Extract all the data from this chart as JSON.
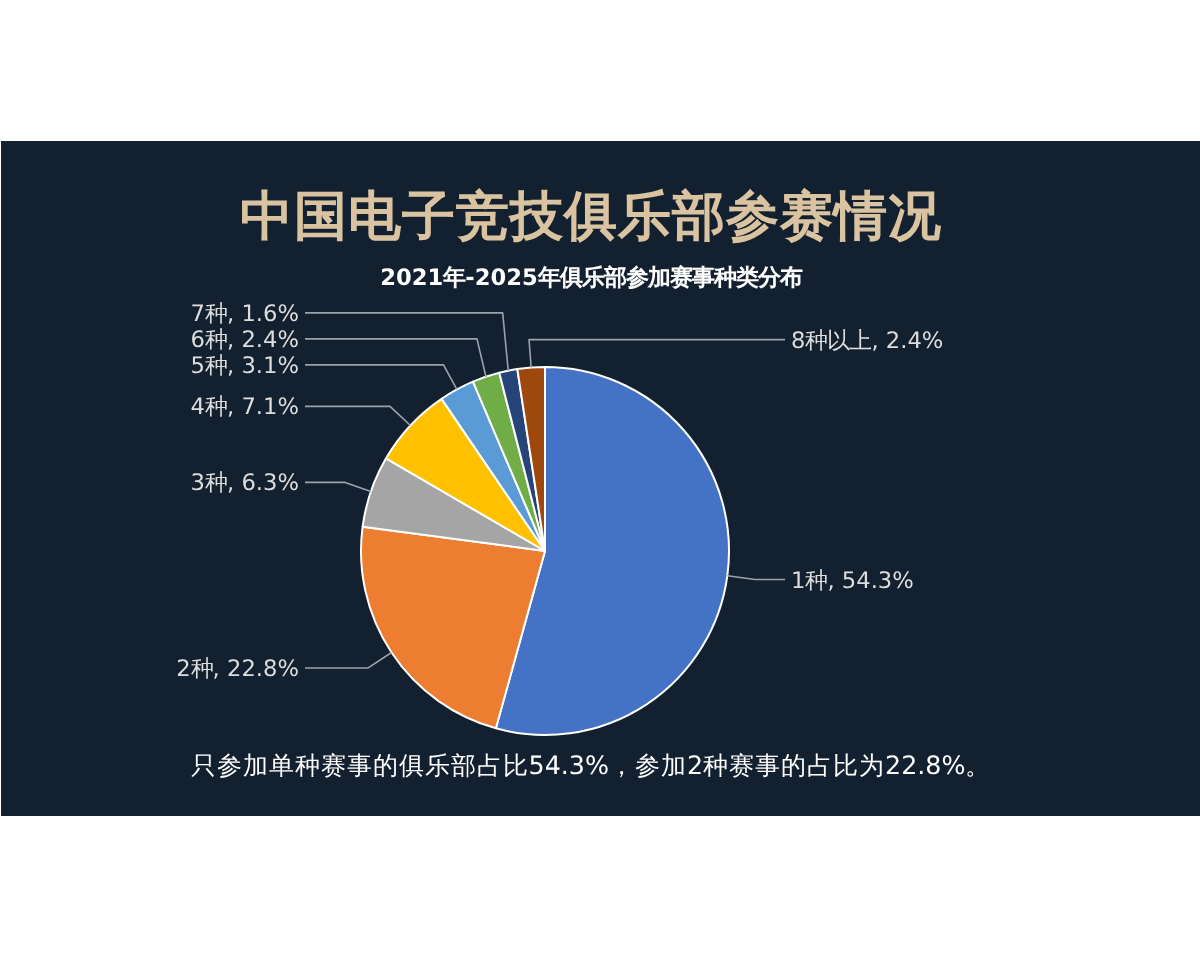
{
  "chart_data": {
    "type": "pie",
    "title": "中国电子竞技俱乐部参赛情况",
    "subtitle": "2021年-2025年俱乐部参加赛事种类分布",
    "categories": [
      "1种",
      "2种",
      "3种",
      "4种",
      "5种",
      "6种",
      "7种",
      "8种以上"
    ],
    "values": [
      54.3,
      22.8,
      6.3,
      7.1,
      3.1,
      2.4,
      1.6,
      2.4
    ],
    "colors": [
      "#4472c4",
      "#ed7d31",
      "#a5a5a5",
      "#ffc000",
      "#5b9bd5",
      "#70ad47",
      "#264478",
      "#9e480e"
    ],
    "value_labels": [
      "54.3%",
      "22.8%",
      "6.3%",
      "7.1%",
      "3.1%",
      "2.4%",
      "1.6%",
      "2.4%"
    ],
    "annotations": [
      "只参加单种赛事的俱乐部占比54.3%，参加2种赛事的占比为22.8%。"
    ]
  }
}
